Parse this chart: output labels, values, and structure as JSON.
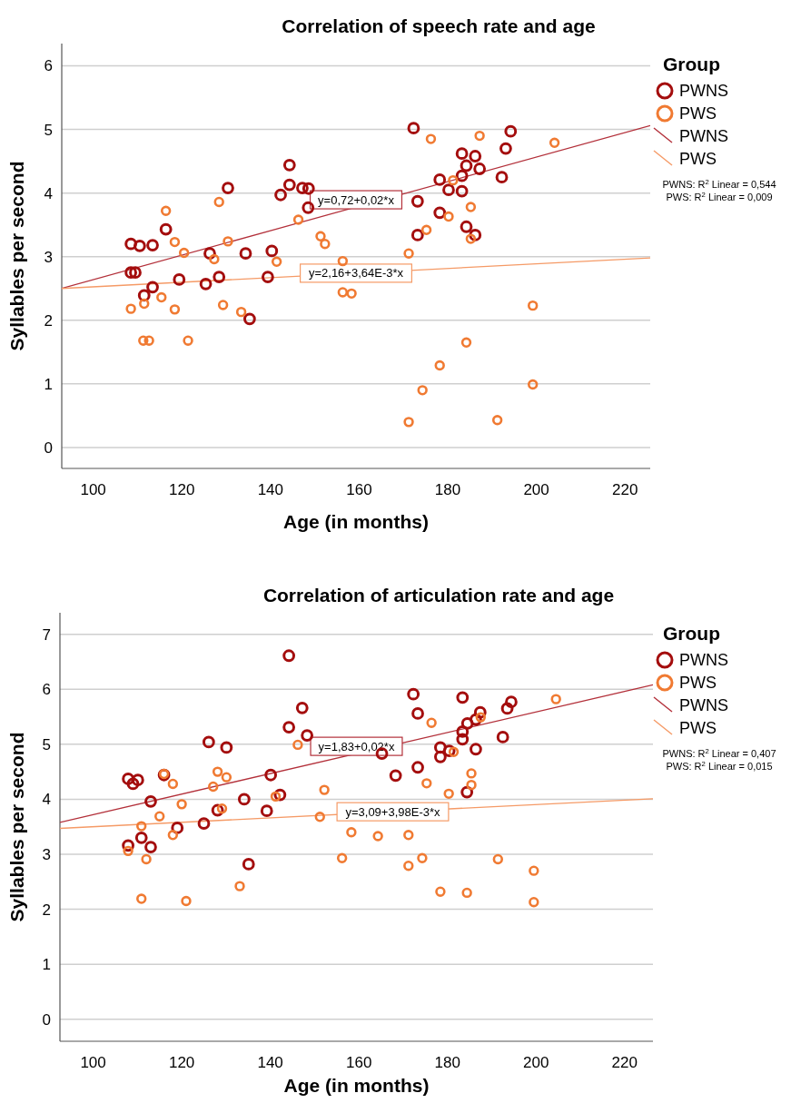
{
  "chart_data": [
    {
      "type": "scatter",
      "title": "Correlation of speech rate and age",
      "xlabel": "Age (in months)",
      "ylabel": "Syllables per second",
      "legend_title": "Group",
      "legend": "right",
      "grid": "y",
      "marker": "circle",
      "xlim": [
        92.9,
        225.7
      ],
      "ylim": [
        -0.33,
        6.35
      ],
      "xticks": [
        100,
        120,
        140,
        160,
        180,
        200,
        220
      ],
      "yticks": [
        0,
        1,
        2,
        3,
        4,
        5,
        6
      ],
      "series": [
        {
          "name": "PWNS",
          "type": "scatter",
          "color": "#a40d0d",
          "x": [
            108.5,
            110.5,
            113.4,
            108.5,
            109.5,
            116.4,
            111.5,
            113.4,
            119.4,
            125.4,
            126.3,
            128.4,
            130.4,
            134.4,
            135.3,
            139.4,
            140.3,
            142.3,
            144.3,
            144.3,
            147.2,
            148.6,
            148.5,
            172.3,
            194.2,
            193.1,
            183.2,
            186.2,
            184.2,
            187.2,
            178.2,
            183.2,
            192.2,
            180.2,
            183.2,
            173.2,
            178.2,
            173.2,
            184.2,
            186.2
          ],
          "values": [
            3.2,
            3.17,
            3.18,
            2.75,
            2.75,
            3.43,
            2.39,
            2.52,
            2.64,
            2.57,
            3.05,
            2.68,
            4.08,
            3.05,
            2.02,
            2.68,
            3.09,
            3.97,
            4.44,
            4.13,
            4.08,
            4.07,
            3.77,
            5.02,
            4.97,
            4.7,
            4.62,
            4.58,
            4.43,
            4.38,
            4.21,
            4.27,
            4.25,
            4.05,
            4.03,
            3.87,
            3.69,
            3.34,
            3.47,
            3.34
          ]
        },
        {
          "name": "PWS",
          "type": "scatter",
          "color": "#f07a32",
          "x": [
            108.5,
            111.5,
            111.3,
            112.6,
            115.4,
            116.4,
            118.4,
            118.4,
            120.5,
            121.4,
            127.3,
            128.4,
            129.3,
            130.4,
            133.4,
            141.4,
            146.3,
            151.3,
            152.3,
            156.3,
            156.3,
            158.3,
            176.2,
            187.2,
            204.1,
            181.2,
            185.2,
            180.2,
            175.2,
            185.2,
            171.2,
            199.2,
            184.2,
            178.2,
            174.3,
            199.2,
            171.2,
            191.2
          ],
          "values": [
            2.18,
            2.26,
            1.68,
            1.68,
            2.36,
            3.72,
            3.23,
            2.17,
            3.06,
            1.68,
            2.96,
            3.86,
            2.24,
            3.24,
            2.13,
            2.92,
            3.58,
            3.32,
            3.2,
            2.93,
            2.44,
            2.42,
            4.85,
            4.9,
            4.79,
            4.2,
            3.78,
            3.63,
            3.42,
            3.28,
            3.05,
            2.23,
            1.65,
            1.29,
            0.9,
            0.99,
            0.4,
            0.43
          ]
        },
        {
          "name": "PWNS",
          "type": "line",
          "marker": "none",
          "color": "#b3303a",
          "x": [
            92.9,
            225.7
          ],
          "values": [
            2.5,
            5.06
          ]
        },
        {
          "name": "PWS",
          "type": "line",
          "marker": "none",
          "color": "#f59a66",
          "x": [
            92.9,
            225.7
          ],
          "values": [
            2.5,
            2.98
          ]
        }
      ],
      "annotations": [
        "y=0,72+0,02*x",
        "y=2,16+3,64E-3*x",
        "PWNS: R$^{2}$ Linear = 0,544",
        "PWS: R$^{2}$ Linear = 0,009"
      ]
    },
    {
      "type": "scatter",
      "title": "Correlation of articulation rate and age",
      "xlabel": "Age (in months)",
      "ylabel": "Syllables per second",
      "legend_title": "Group",
      "legend": "right",
      "grid": "y",
      "marker": "circle",
      "xlim": [
        92.5,
        226.4
      ],
      "ylim": [
        -0.4,
        7.39
      ],
      "xticks": [
        100,
        120,
        140,
        160,
        180,
        200,
        220
      ],
      "yticks": [
        0,
        1,
        2,
        3,
        4,
        5,
        6,
        7
      ],
      "series": [
        {
          "name": "PWNS",
          "type": "scatter",
          "color": "#a40d0d",
          "x": [
            107.9,
            109.0,
            110.1,
            113.0,
            107.9,
            110.9,
            113.0,
            116.0,
            119.0,
            125.0,
            126.1,
            128.1,
            130.1,
            134.1,
            135.1,
            139.2,
            140.1,
            142.2,
            144.2,
            144.2,
            147.2,
            148.3,
            165.2,
            168.3,
            172.3,
            173.3,
            173.3,
            183.4,
            178.4,
            178.4,
            180.4,
            183.4,
            183.4,
            184.5,
            186.4,
            187.4,
            186.4,
            184.4,
            192.5,
            193.5,
            194.4
          ],
          "values": [
            4.37,
            4.28,
            4.35,
            3.96,
            3.16,
            3.3,
            3.13,
            4.44,
            3.48,
            3.56,
            5.04,
            3.8,
            4.94,
            4.0,
            2.82,
            3.79,
            4.44,
            4.08,
            6.61,
            5.31,
            5.66,
            5.16,
            4.83,
            4.43,
            5.91,
            5.56,
            4.58,
            5.85,
            4.94,
            4.77,
            4.88,
            5.23,
            5.09,
            5.38,
            5.45,
            5.58,
            4.91,
            4.13,
            5.13,
            5.65,
            5.77
          ]
        },
        {
          "name": "PWS",
          "type": "scatter",
          "color": "#f07a32",
          "x": [
            107.9,
            110.9,
            112.0,
            110.9,
            115.0,
            116.0,
            118.0,
            118.0,
            120.0,
            121.0,
            127.1,
            128.1,
            129.1,
            130.1,
            133.1,
            141.2,
            146.2,
            151.2,
            152.2,
            156.2,
            158.3,
            176.4,
            187.5,
            204.5,
            181.4,
            185.4,
            185.4,
            175.3,
            180.3,
            164.3,
            171.2,
            171.2,
            174.3,
            191.4,
            199.5,
            178.4,
            184.4,
            199.5
          ],
          "values": [
            3.06,
            3.51,
            2.91,
            2.19,
            3.69,
            4.46,
            4.28,
            3.35,
            3.91,
            2.15,
            4.23,
            4.5,
            3.83,
            4.4,
            2.42,
            4.05,
            4.99,
            3.68,
            4.17,
            2.93,
            3.4,
            5.39,
            5.49,
            5.82,
            4.86,
            4.47,
            4.26,
            4.29,
            4.1,
            3.33,
            3.35,
            2.79,
            2.93,
            2.91,
            2.7,
            2.32,
            2.3,
            2.13
          ]
        },
        {
          "name": "PWNS",
          "type": "line",
          "marker": "none",
          "color": "#b3303a",
          "x": [
            92.5,
            226.4
          ],
          "values": [
            3.58,
            6.08
          ]
        },
        {
          "name": "PWS",
          "type": "line",
          "marker": "none",
          "color": "#f59a66",
          "x": [
            92.5,
            226.4
          ],
          "values": [
            3.47,
            4.01
          ]
        }
      ],
      "annotations": [
        "y=1,83+0,02*x",
        "y=3,09+3,98E-3*x",
        "PWNS: R$^{2}$ Linear = 0,407",
        "PWS: R$^{2}$ Linear = 0,015"
      ]
    }
  ]
}
